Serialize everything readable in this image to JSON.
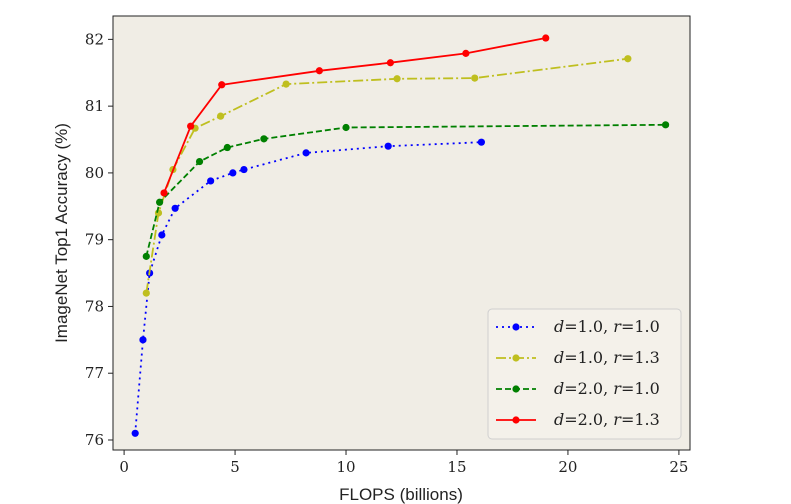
{
  "chart_data": {
    "type": "line",
    "title": "",
    "xlabel": "FLOPS (billions)",
    "ylabel": "ImageNet Top1 Accuracy (%)",
    "xlim": [
      -0.5,
      25.5
    ],
    "ylim": [
      75.85,
      82.35
    ],
    "x_ticks": [
      0,
      5,
      10,
      15,
      20,
      25
    ],
    "y_ticks": [
      76,
      77,
      78,
      79,
      80,
      81,
      82
    ],
    "grid": false,
    "legend_position": "bottom-right",
    "colors": {
      "background": "#f0ede5",
      "figure": "#ffffff"
    },
    "series": [
      {
        "legend_parts": [
          {
            "text": "d",
            "italic": true
          },
          {
            "text": "=1.0, ",
            "italic": false
          },
          {
            "text": "r",
            "italic": true
          },
          {
            "text": "=1.0",
            "italic": false
          }
        ],
        "color": "#0000ff",
        "dash": "2,4",
        "x": [
          0.5,
          0.85,
          1.15,
          1.7,
          2.3,
          3.9,
          4.9,
          5.4,
          8.2,
          11.9,
          16.1
        ],
        "y": [
          76.1,
          77.5,
          78.5,
          79.07,
          79.47,
          79.88,
          80.0,
          80.05,
          80.3,
          80.4,
          80.46
        ]
      },
      {
        "legend_parts": [
          {
            "text": "d",
            "italic": true
          },
          {
            "text": "=1.0, ",
            "italic": false
          },
          {
            "text": "r",
            "italic": true
          },
          {
            "text": "=1.3",
            "italic": false
          }
        ],
        "color": "#bfbf1f",
        "dash": "10,3,2,3",
        "x": [
          1.0,
          1.55,
          2.2,
          3.2,
          4.35,
          7.3,
          12.3,
          15.8,
          22.7
        ],
        "y": [
          78.2,
          79.4,
          80.05,
          80.67,
          80.85,
          81.33,
          81.41,
          81.42,
          81.71
        ]
      },
      {
        "legend_parts": [
          {
            "text": "d",
            "italic": true
          },
          {
            "text": "=2.0, ",
            "italic": false
          },
          {
            "text": "r",
            "italic": true
          },
          {
            "text": "=1.0",
            "italic": false
          }
        ],
        "color": "#008000",
        "dash": "6,3",
        "x": [
          1.0,
          1.6,
          3.4,
          4.65,
          6.3,
          10.0,
          24.4
        ],
        "y": [
          78.75,
          79.56,
          80.17,
          80.38,
          80.51,
          80.68,
          80.72
        ]
      },
      {
        "legend_parts": [
          {
            "text": "d",
            "italic": true
          },
          {
            "text": "=2.0, ",
            "italic": false
          },
          {
            "text": "r",
            "italic": true
          },
          {
            "text": "=1.3",
            "italic": false
          }
        ],
        "color": "#ff0000",
        "dash": "",
        "x": [
          1.8,
          3.0,
          4.4,
          8.8,
          12.0,
          15.4,
          19.0
        ],
        "y": [
          79.7,
          80.7,
          81.32,
          81.53,
          81.65,
          81.79,
          82.02
        ]
      }
    ]
  }
}
